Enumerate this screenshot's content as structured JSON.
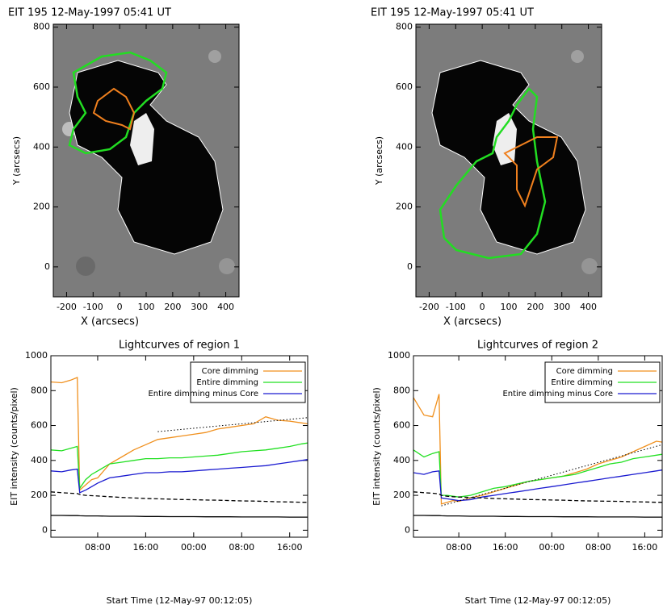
{
  "chart_data": [
    {
      "type": "image",
      "title": "EIT 195 12-May-1997 05:41 UT",
      "xlabel": "X (arcsecs)",
      "ylabel": "Y (arcsecs)",
      "xlim": [
        -250,
        450
      ],
      "ylim": [
        -100,
        810
      ],
      "xticks": [
        -200,
        -100,
        0,
        100,
        200,
        300,
        400
      ],
      "yticks": [
        0,
        200,
        400,
        600,
        800
      ]
    },
    {
      "type": "image",
      "title": "EIT 195 12-May-1997 05:41 UT",
      "xlabel": "X (arcsecs)",
      "ylabel": "Y (arcsecs)",
      "xlim": [
        -250,
        450
      ],
      "ylim": [
        -100,
        810
      ],
      "xticks": [
        -200,
        -100,
        0,
        100,
        200,
        300,
        400
      ],
      "yticks": [
        0,
        200,
        400,
        600,
        800
      ]
    },
    {
      "type": "line",
      "title": "Lightcurves of region 1",
      "xlabel": "Start Time (12-May-97 00:12:05)",
      "ylabel": "EIT intensity (counts/pixel)",
      "xlim": [
        0.2,
        43
      ],
      "ylim": [
        -40,
        1000
      ],
      "xticks": [
        {
          "value": 8,
          "label": "08:00"
        },
        {
          "value": 16,
          "label": "16:00"
        },
        {
          "value": 24,
          "label": "00:00"
        },
        {
          "value": 32,
          "label": "08:00"
        },
        {
          "value": 40,
          "label": "16:00"
        }
      ],
      "yticks": [
        0,
        200,
        400,
        600,
        800,
        1000
      ],
      "legend": "upper right",
      "x": [
        0.2,
        2,
        3.5,
        4.6,
        5.0,
        6,
        7,
        8,
        10,
        12,
        14,
        16,
        18,
        20,
        22,
        24,
        26,
        28,
        30,
        32,
        34,
        36,
        38,
        40,
        42,
        43
      ],
      "series": [
        {
          "name": "Core dimming",
          "color": "#f0901e",
          "values": [
            850,
            845,
            860,
            875,
            230,
            260,
            290,
            300,
            380,
            420,
            460,
            490,
            520,
            530,
            540,
            550,
            560,
            580,
            590,
            600,
            610,
            650,
            630,
            625,
            615,
            610
          ]
        },
        {
          "name": "Entire dimming",
          "color": "#22e022",
          "values": [
            460,
            455,
            470,
            480,
            240,
            290,
            320,
            340,
            380,
            390,
            400,
            410,
            410,
            415,
            415,
            420,
            425,
            430,
            440,
            450,
            455,
            460,
            470,
            480,
            495,
            500
          ]
        },
        {
          "name": "Entire dimming minus Core",
          "color": "#1a1ad0",
          "values": [
            340,
            335,
            345,
            350,
            215,
            230,
            250,
            270,
            300,
            310,
            320,
            330,
            330,
            335,
            335,
            340,
            345,
            350,
            355,
            360,
            365,
            370,
            380,
            390,
            400,
            405
          ]
        },
        {
          "color": "#000000",
          "style": "dashed",
          "values": [
            220,
            215,
            212,
            210,
            205,
            200,
            198,
            196,
            192,
            188,
            185,
            182,
            180,
            178,
            176,
            175,
            173,
            172,
            170,
            168,
            167,
            165,
            163,
            162,
            160,
            160
          ]
        },
        {
          "color": "#000000",
          "values": [
            85,
            85,
            84,
            84,
            83,
            82,
            82,
            82,
            80,
            80,
            80,
            79,
            79,
            78,
            78,
            78,
            77,
            77,
            77,
            76,
            76,
            76,
            76,
            75,
            75,
            75
          ]
        },
        {
          "color": "#000000",
          "style": "dotted",
          "x": [
            18,
            43
          ],
          "values": [
            565,
            645
          ]
        }
      ]
    },
    {
      "type": "line",
      "title": "Lightcurves of region 2",
      "xlabel": "Start Time (12-May-97 00:12:05)",
      "ylabel": "EIT intensity (counts/pixel)",
      "xlim": [
        0.2,
        43
      ],
      "ylim": [
        -40,
        1000
      ],
      "xticks": [
        {
          "value": 8,
          "label": "08:00"
        },
        {
          "value": 16,
          "label": "16:00"
        },
        {
          "value": 24,
          "label": "00:00"
        },
        {
          "value": 32,
          "label": "08:00"
        },
        {
          "value": 40,
          "label": "16:00"
        }
      ],
      "yticks": [
        0,
        200,
        400,
        600,
        800,
        1000
      ],
      "legend": "upper right",
      "x": [
        0.2,
        2,
        3.5,
        4.6,
        5.0,
        6,
        7,
        8,
        10,
        12,
        14,
        16,
        18,
        20,
        22,
        24,
        26,
        28,
        30,
        32,
        34,
        36,
        38,
        40,
        42,
        43
      ],
      "series": [
        {
          "name": "Core dimming",
          "color": "#f0901e",
          "values": [
            760,
            660,
            650,
            780,
            150,
            160,
            170,
            165,
            185,
            200,
            220,
            240,
            260,
            280,
            290,
            300,
            310,
            330,
            350,
            380,
            400,
            420,
            450,
            480,
            510,
            505
          ]
        },
        {
          "name": "Entire dimming",
          "color": "#22e022",
          "values": [
            460,
            420,
            440,
            450,
            200,
            200,
            195,
            190,
            200,
            220,
            240,
            250,
            265,
            280,
            290,
            300,
            310,
            320,
            340,
            360,
            380,
            390,
            410,
            420,
            430,
            435
          ]
        },
        {
          "name": "Entire dimming minus Core",
          "color": "#1a1ad0",
          "values": [
            330,
            320,
            335,
            340,
            185,
            180,
            175,
            170,
            175,
            190,
            200,
            210,
            220,
            230,
            240,
            250,
            260,
            270,
            280,
            290,
            300,
            310,
            320,
            330,
            340,
            345
          ]
        },
        {
          "color": "#000000",
          "style": "dashed",
          "values": [
            220,
            215,
            212,
            208,
            200,
            195,
            192,
            190,
            188,
            185,
            182,
            180,
            178,
            176,
            175,
            173,
            172,
            170,
            168,
            167,
            166,
            165,
            163,
            162,
            160,
            160
          ]
        },
        {
          "color": "#000000",
          "values": [
            85,
            85,
            84,
            84,
            83,
            82,
            82,
            82,
            80,
            80,
            80,
            79,
            79,
            78,
            78,
            78,
            77,
            77,
            77,
            76,
            76,
            76,
            76,
            75,
            75,
            75
          ]
        },
        {
          "color": "#000000",
          "style": "dotted",
          "x": [
            5,
            43
          ],
          "values": [
            140,
            490
          ]
        }
      ]
    }
  ]
}
